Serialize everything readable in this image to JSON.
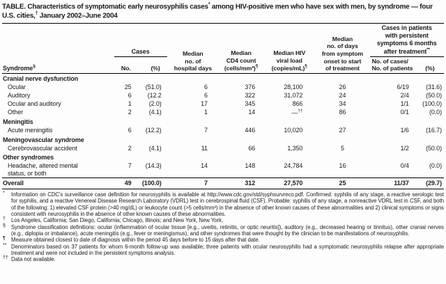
{
  "title": {
    "part1": "TABLE. Characteristics of symptomatic early neurosyphilis cases",
    "marker1": "*",
    "part2": " among HIV-positive men who have sex with men, by syndrome — four U.S. cities,",
    "marker2": "†",
    "part3": " January 2002–June 2004"
  },
  "table": {
    "header": {
      "syndrome": {
        "label": "Syndrome",
        "marker": "§"
      },
      "cases_group": "Cases",
      "sub_no": "No.",
      "sub_pct": "(%)",
      "hospital": "Median\nno. of\nhospital days",
      "cd4": {
        "lines": "Median\nCD4 count",
        "last": "(cells/mm³)",
        "marker": "¶"
      },
      "viral": {
        "lines": "Median HIV\nviral load",
        "last": "(copies/mL)",
        "marker": "¶"
      },
      "days": "Median\nno. of days\nfrom symptom\nonset to start\nof treatment",
      "persistent_group": {
        "lines": "Cases in patients\nwith persistent\nsymptoms 6 months\nafter treatment",
        "marker": "**"
      },
      "sub_ratio": "No. of cases/\nNo. of patients",
      "sub_pct2": "(%)"
    },
    "rows": [
      {
        "type": "group",
        "label": "Cranial nerve dysfunction"
      },
      {
        "type": "data",
        "label": "Ocular",
        "cells": [
          "25",
          "(51.0)",
          "6",
          "376",
          "28,100",
          "26",
          "6/19",
          "(31.6)"
        ]
      },
      {
        "type": "data",
        "label": "Auditory",
        "cells": [
          "6",
          "(12.2",
          "6",
          "322",
          "31,072",
          "24",
          "2/4",
          "(50.0)"
        ]
      },
      {
        "type": "data",
        "label": "Ocular and auditory",
        "cells": [
          "1",
          "(2.0)",
          "17",
          "345",
          "866",
          "34",
          "1/1",
          "(100.0)"
        ]
      },
      {
        "type": "data",
        "label": "Other",
        "cells": [
          "2",
          "(4.1)",
          "1",
          "14",
          {
            "text": "—",
            "sup": "††"
          },
          "86",
          "0/1",
          "(0.0)"
        ]
      },
      {
        "type": "group",
        "label": "Meningitis"
      },
      {
        "type": "data",
        "label": "Acute meningitis",
        "cells": [
          "6",
          "(12.2)",
          "7",
          "446",
          "10,020",
          "27",
          "1/6",
          "(16.7)"
        ]
      },
      {
        "type": "group",
        "label": "Meningovascular syndrome"
      },
      {
        "type": "data",
        "label": "Cerebrovascular accident",
        "cells": [
          "2",
          "(4.1)",
          "11",
          "66",
          "1,350",
          "5",
          "1/2",
          "(50.0)"
        ]
      },
      {
        "type": "group",
        "label": "Other syndromes"
      },
      {
        "type": "data",
        "label": "Headache, altered mental\nstatus, or both",
        "cells": [
          "7",
          "(14.3)",
          "14",
          "148",
          "24,784",
          "16",
          "0/4",
          "(0.0)"
        ]
      },
      {
        "type": "overall",
        "label": "Overall",
        "cells": [
          "49",
          "(100.0)",
          "7",
          "312",
          "27,570",
          "25",
          "11/37",
          "(29.7)"
        ]
      }
    ]
  },
  "footnotes": [
    {
      "marker": "*",
      "text": "Information on CDC's surveillance case definition for neurosyphilis is available at http://www.cdc.gov/std/syphsurvreco.pdf. Confirmed: syphilis of any stage, a reactive serologic test for syphilis, and a reactive Venereal Disease Research Laboratory (VDRL) test in cerebrospinal fluid (CSF). Probable: syphilis of any stage, a nonreactive VDRL test in CSF, and both of the following: 1) elevated CSF protein (>40 mg/dL) or leukocyte count (>5 cells/mm³) in the absence of other known causes of these abnormalities and 2) clinical symptoms or signs consistent with neurosyphilis in the absence of other known causes of these abnormalities."
    },
    {
      "marker": "†",
      "text": "Los Angeles, California; San Diego, California; Chicago, Illinois; and New York, New York."
    },
    {
      "marker": "§",
      "text": "Syndrome classification definitions: ocular (inflammation of ocular tissue [e.g., uveitis, retinitis, or optic neuritis]), auditory (e.g., decreased hearing or tinnitus), other cranial nerves (e.g., diplopia or imbalance), acute meningitis (e.g., fever or meningismus), and other syndromes that were thought by the clinician to be manifestations of neurosyphilis."
    },
    {
      "marker": "¶",
      "text": "Measure obtained closest to date of diagnosis within the period 45 days before to 15 days after that date."
    },
    {
      "marker": "**",
      "text": "Denominators based on 37 patients for whom 6-month follow-up was available; three patients with ocular neurosyphilis had a symptomatic neurosyphilis relapse after appropriate treatment and were not included in the persistent symptoms analysis."
    },
    {
      "marker": "††",
      "text": "Data not available."
    }
  ]
}
